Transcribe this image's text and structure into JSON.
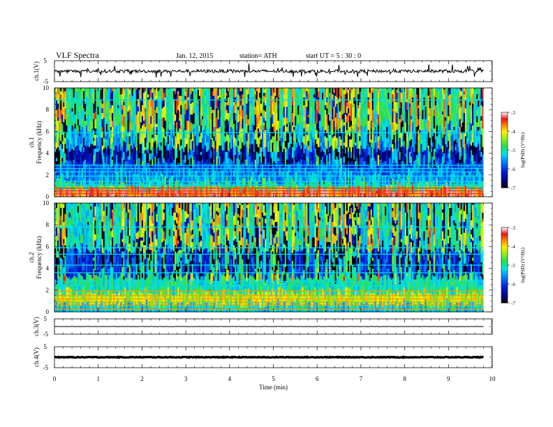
{
  "header": {
    "title": "VLF  Spectra",
    "date": "Jan.  12,  2015",
    "station": "station= ATH",
    "start": "start  UT  =    5  : 30 : 0"
  },
  "chart_data": [
    {
      "type": "line",
      "panel": "ch1-waveform",
      "ylabel": "ch.1(V)",
      "ylim": [
        -5,
        5
      ],
      "yticks": [
        "5",
        "-5"
      ],
      "xlim": [
        0,
        10
      ],
      "data_end_min": 9.8,
      "baseline": 0.0,
      "noise_amplitude": 1.5
    },
    {
      "type": "heatmap",
      "panel": "ch1-spectrogram",
      "ylabel": "ch.1\nFrequency (kHz)",
      "ylim": [
        0,
        10
      ],
      "yticks": [
        "0",
        "2",
        "4",
        "6",
        "8",
        "10"
      ],
      "xlim": [
        0,
        10
      ],
      "data_end_min": 9.8,
      "colorbar": {
        "label": "log(PSD) (V²/Hz)",
        "range": [
          -7,
          -3
        ],
        "ticks": [
          "-3",
          "-4",
          "-5",
          "-6",
          "-7"
        ]
      }
    },
    {
      "type": "heatmap",
      "panel": "ch2-spectrogram",
      "ylabel": "ch.2\nFrequency (kHz)",
      "ylim": [
        0,
        10
      ],
      "yticks": [
        "0",
        "2",
        "4",
        "6",
        "8",
        "10"
      ],
      "xlim": [
        0,
        10
      ],
      "data_end_min": 9.8,
      "colorbar": {
        "label": "log(PSD) (V²/Hz)",
        "range": [
          -7,
          -3
        ],
        "ticks": [
          "-3",
          "-4",
          "-5",
          "-6",
          "-7"
        ]
      }
    },
    {
      "type": "line",
      "panel": "ch3-waveform",
      "ylabel": "ch.3(V)",
      "ylim": [
        -5,
        5
      ],
      "yticks": [
        "5",
        "-5"
      ],
      "xlim": [
        0,
        10
      ],
      "data_end_min": 9.8,
      "baseline": 0.0,
      "noise_amplitude": 0.2
    },
    {
      "type": "line",
      "panel": "ch4-waveform",
      "ylabel": "ch.4(V)",
      "ylim": [
        -5,
        5
      ],
      "yticks": [
        "5",
        "-5"
      ],
      "xlim": [
        0,
        10
      ],
      "data_end_min": 9.8,
      "baseline": 0.0,
      "noise_amplitude": 0.35
    }
  ],
  "xaxis": {
    "label": "Time  (min)",
    "ticks": [
      "0",
      "1",
      "2",
      "3",
      "4",
      "5",
      "6",
      "7",
      "8",
      "9",
      "10"
    ]
  }
}
